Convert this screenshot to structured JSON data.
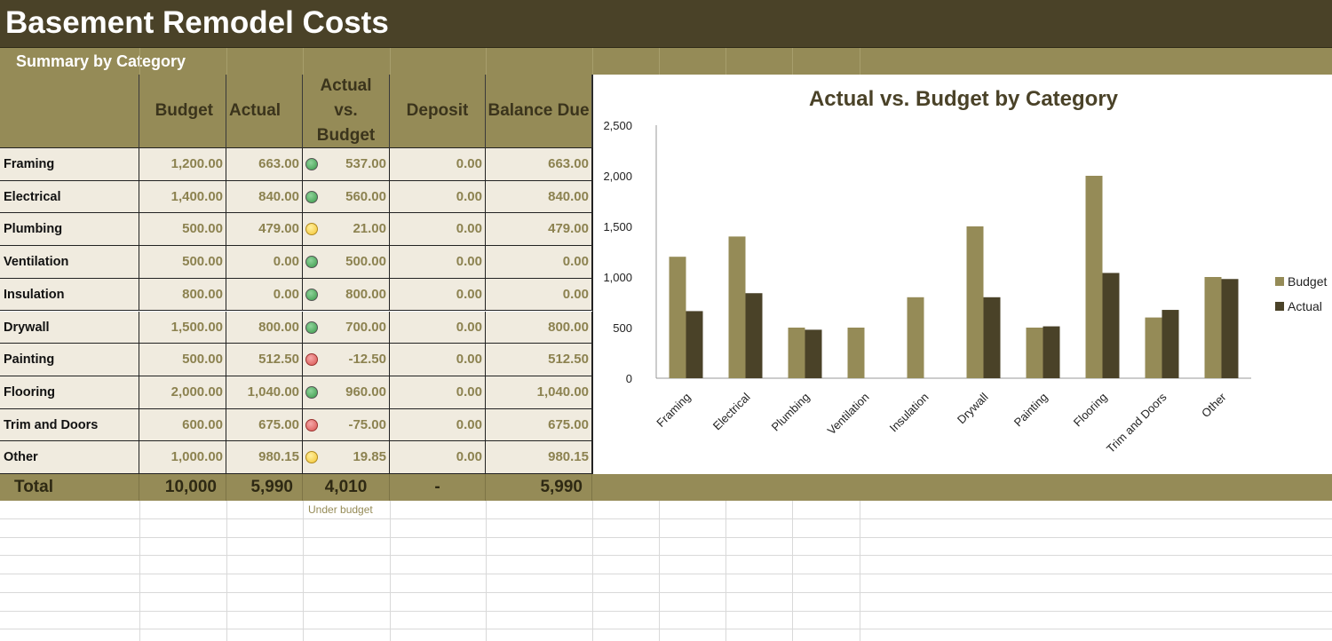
{
  "sheet": {
    "title": "Basement Remodel Costs",
    "subtitle": "Summary by Category",
    "note": "Under budget"
  },
  "colors": {
    "title_bar": "#4a4228",
    "accent": "#958b57",
    "cell_fill": "#f0ebdf",
    "number_text": "#8c8250",
    "budget_series": "#958b57",
    "actual_series": "#4a4228"
  },
  "table": {
    "headers": {
      "category": "",
      "budget": "Budget",
      "actual": "Actual",
      "actual_vs_budget": "Actual vs. Budget",
      "deposit": "Deposit",
      "balance_due": "Balance Due"
    },
    "rows": [
      {
        "category": "Framing",
        "budget": "1,200.00",
        "actual": "663.00",
        "status": "green",
        "diff": "537.00",
        "deposit": "0.00",
        "balance": "663.00"
      },
      {
        "category": "Electrical",
        "budget": "1,400.00",
        "actual": "840.00",
        "status": "green",
        "diff": "560.00",
        "deposit": "0.00",
        "balance": "840.00"
      },
      {
        "category": "Plumbing",
        "budget": "500.00",
        "actual": "479.00",
        "status": "yellow",
        "diff": "21.00",
        "deposit": "0.00",
        "balance": "479.00"
      },
      {
        "category": "Ventilation",
        "budget": "500.00",
        "actual": "0.00",
        "status": "green",
        "diff": "500.00",
        "deposit": "0.00",
        "balance": "0.00"
      },
      {
        "category": "Insulation",
        "budget": "800.00",
        "actual": "0.00",
        "status": "green",
        "diff": "800.00",
        "deposit": "0.00",
        "balance": "0.00"
      },
      {
        "category": "Drywall",
        "budget": "1,500.00",
        "actual": "800.00",
        "status": "green",
        "diff": "700.00",
        "deposit": "0.00",
        "balance": "800.00"
      },
      {
        "category": "Painting",
        "budget": "500.00",
        "actual": "512.50",
        "status": "red",
        "diff": "-12.50",
        "deposit": "0.00",
        "balance": "512.50"
      },
      {
        "category": "Flooring",
        "budget": "2,000.00",
        "actual": "1,040.00",
        "status": "green",
        "diff": "960.00",
        "deposit": "0.00",
        "balance": "1,040.00"
      },
      {
        "category": "Trim and Doors",
        "budget": "600.00",
        "actual": "675.00",
        "status": "red",
        "diff": "-75.00",
        "deposit": "0.00",
        "balance": "675.00"
      },
      {
        "category": "Other",
        "budget": "1,000.00",
        "actual": "980.15",
        "status": "yellow",
        "diff": "19.85",
        "deposit": "0.00",
        "balance": "980.15"
      }
    ],
    "total": {
      "label": "Total",
      "budget": "10,000",
      "actual": "5,990",
      "diff": "4,010",
      "deposit": "-",
      "balance": "5,990"
    }
  },
  "chart_data": {
    "type": "bar",
    "title": "Actual vs. Budget by Category",
    "categories": [
      "Framing",
      "Electrical",
      "Plumbing",
      "Ventilation",
      "Insulation",
      "Drywall",
      "Painting",
      "Flooring",
      "Trim and Doors",
      "Other"
    ],
    "series": [
      {
        "name": "Budget",
        "color": "#958b57",
        "values": [
          1200,
          1400,
          500,
          500,
          800,
          1500,
          500,
          2000,
          600,
          1000
        ]
      },
      {
        "name": "Actual",
        "color": "#4a4228",
        "values": [
          663,
          840,
          479,
          0,
          0,
          800,
          512.5,
          1040,
          675,
          980.15
        ]
      }
    ],
    "ylim": [
      0,
      2500
    ],
    "yticks": [
      "0",
      "500",
      "1,000",
      "1,500",
      "2,000",
      "2,500"
    ],
    "grid": false,
    "legend": "right"
  }
}
